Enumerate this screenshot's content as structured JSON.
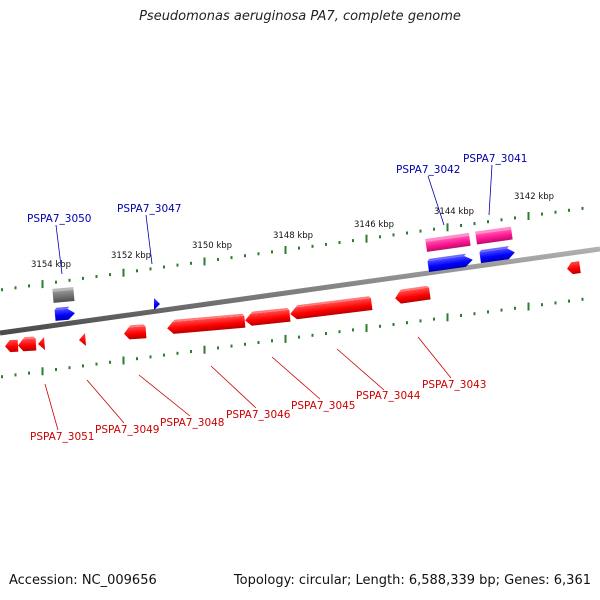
{
  "title": "Pseudomonas aeruginosa PA7, complete genome",
  "footer": {
    "accession": "Accession: NC_009656",
    "summary": "Topology: circular; Length: 6,588,339 bp; Genes: 6,361"
  },
  "colors": {
    "backbone": "#808080",
    "scale_ticks": "#2e7d2e",
    "forward_gene": "#0000ff",
    "forward_label": "#0000aa",
    "reverse_gene": "#ff0000",
    "reverse_label": "#cc0000",
    "rna_gene": "#ff1493",
    "pseudo_gene": "#707070"
  },
  "scale_labels": [
    {
      "text": "3142 kbp"
    },
    {
      "text": "3144 kbp"
    },
    {
      "text": "3146 kbp"
    },
    {
      "text": "3148 kbp"
    },
    {
      "text": "3150 kbp"
    },
    {
      "text": "3152 kbp"
    },
    {
      "text": "3154 kbp"
    }
  ],
  "gene_labels": {
    "top": [
      "PSPA7_3050",
      "PSPA7_3047",
      "PSPA7_3042",
      "PSPA7_3041"
    ],
    "bottom": [
      "PSPA7_3051",
      "PSPA7_3049",
      "PSPA7_3048",
      "PSPA7_3046",
      "PSPA7_3045",
      "PSPA7_3044",
      "PSPA7_3043"
    ]
  }
}
